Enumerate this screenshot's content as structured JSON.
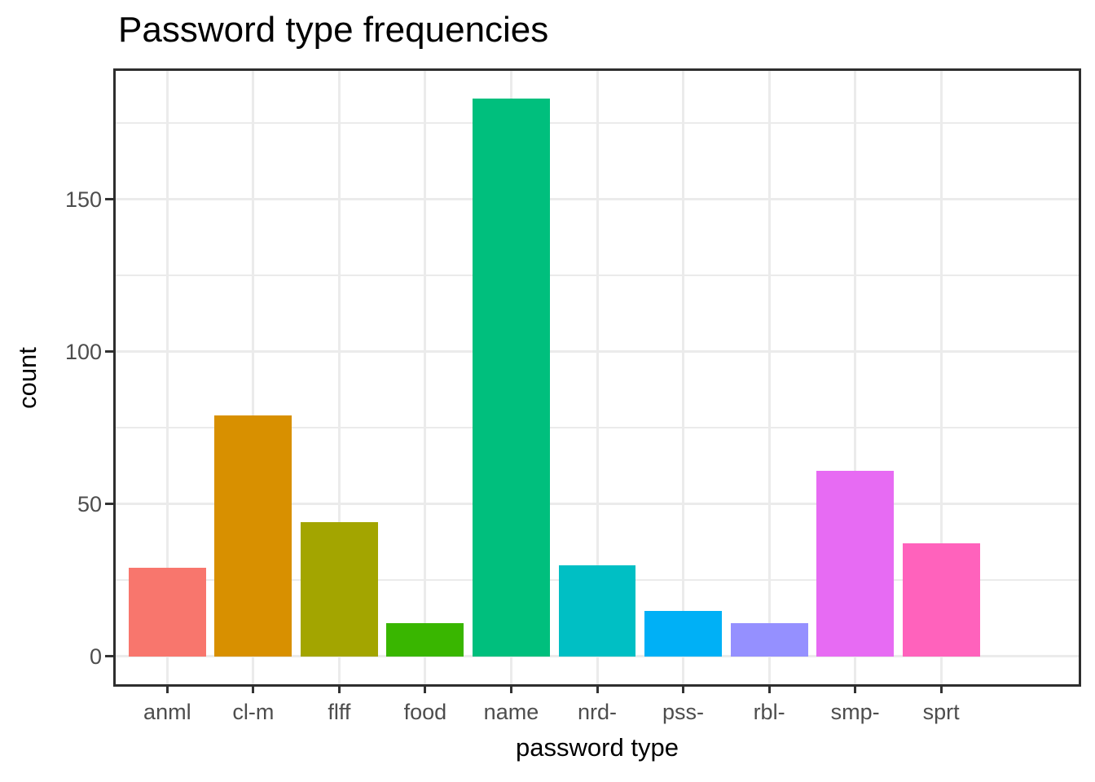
{
  "chart_data": {
    "type": "bar",
    "title": "Password type frequencies",
    "xlabel": "password type",
    "ylabel": "count",
    "categories": [
      "anml",
      "cl-m",
      "flff",
      "food",
      "name",
      "nrd-",
      "pss-",
      "rbl-",
      "smp-",
      "sprt"
    ],
    "values": [
      29,
      79,
      44,
      11,
      183,
      30,
      15,
      11,
      61,
      37
    ],
    "bar_colors": [
      "#F8766D",
      "#D89000",
      "#A3A500",
      "#39B600",
      "#00BF7D",
      "#00BFC4",
      "#00B0F6",
      "#9590FF",
      "#E76BF3",
      "#FF62BC"
    ],
    "y_ticks": [
      0,
      50,
      100,
      150
    ],
    "y_minor_ticks": [
      25,
      75,
      125,
      175
    ],
    "ylim": [
      0,
      183
    ],
    "grid": "horizontal major+minor, vertical major at category centers",
    "legend": "none"
  },
  "colors": {
    "background": "#FFFFFF",
    "panel_background": "#FFFFFF",
    "panel_border": "#2E2E2E",
    "gridline": "#EBEBEB",
    "tick_mark": "#333333",
    "tick_label": "#4D4D4D",
    "text": "#000000"
  }
}
